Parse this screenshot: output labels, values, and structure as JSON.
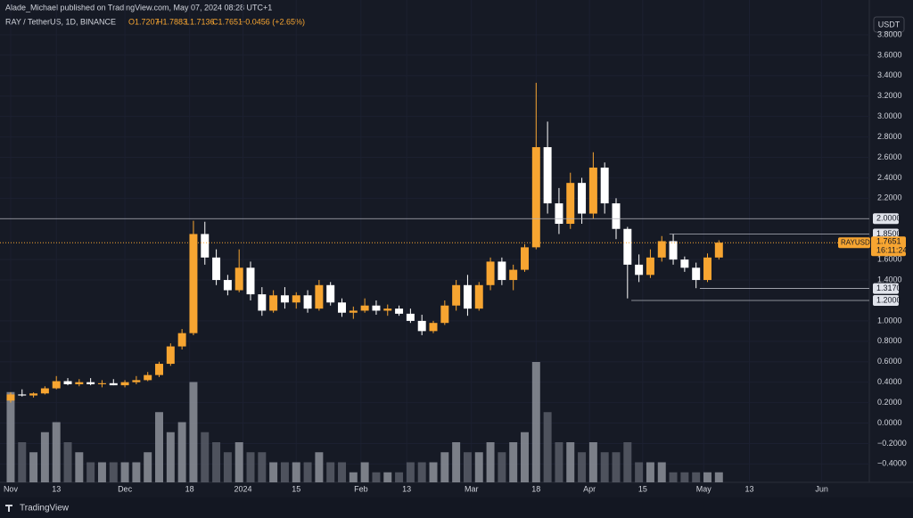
{
  "header": {
    "author_line": "Alade_Michael published on TradingView.com, May 07, 2024 08:28 UTC+1",
    "symbol": "RAY / TetherUS, 1D, BINANCE",
    "open": "O1.7207",
    "high": "H1.7883",
    "low": "L1.7136",
    "close": "C1.7651",
    "change": "+0.0456 (+2.65%)",
    "currency": "USDT",
    "brand": "TradingView"
  },
  "chart_data": {
    "type": "candlestick",
    "up_color": "#f7a531",
    "down_color": "#ffffff",
    "volume_up_color": "#9598a1",
    "volume_down_color": "#5d606b",
    "xlim": [
      -2.8,
      225.5
    ],
    "ylim": [
      -0.58,
      4.14
    ],
    "xticks": [
      {
        "value": 0,
        "label": "Nov"
      },
      {
        "value": 12,
        "label": "13"
      },
      {
        "value": 30,
        "label": "Dec"
      },
      {
        "value": 47,
        "label": "18"
      },
      {
        "value": 61,
        "label": "2024"
      },
      {
        "value": 75,
        "label": "15"
      },
      {
        "value": 92,
        "label": "Feb"
      },
      {
        "value": 104,
        "label": "13"
      },
      {
        "value": 121,
        "label": "Mar"
      },
      {
        "value": 138,
        "label": "18"
      },
      {
        "value": 152,
        "label": "Apr"
      },
      {
        "value": 166,
        "label": "15"
      },
      {
        "value": 182,
        "label": "May"
      },
      {
        "value": 194,
        "label": "13"
      },
      {
        "value": 213,
        "label": "Jun"
      }
    ],
    "yticks": [
      {
        "value": -0.4,
        "label": "−0.4000"
      },
      {
        "value": -0.2,
        "label": "−0.2000"
      },
      {
        "value": 0,
        "label": "0.0000"
      },
      {
        "value": 0.2,
        "label": "0.2000"
      },
      {
        "value": 0.4,
        "label": "0.4000"
      },
      {
        "value": 0.6,
        "label": "0.6000"
      },
      {
        "value": 0.8,
        "label": "0.8000"
      },
      {
        "value": 1.0,
        "label": "1.0000"
      },
      {
        "value": 1.4,
        "label": "1.4000"
      },
      {
        "value": 1.6,
        "label": "1.6000"
      },
      {
        "value": 2.2,
        "label": "2.2000"
      },
      {
        "value": 2.4,
        "label": "2.4000"
      },
      {
        "value": 2.6,
        "label": "2.6000"
      },
      {
        "value": 2.8,
        "label": "2.8000"
      },
      {
        "value": 3.0,
        "label": "3.0000"
      },
      {
        "value": 3.2,
        "label": "3.2000"
      },
      {
        "value": 3.4,
        "label": "3.4000"
      },
      {
        "value": 3.6,
        "label": "3.6000"
      },
      {
        "value": 3.8,
        "label": "3.8000"
      }
    ],
    "x": [
      0,
      3,
      6,
      9,
      12,
      15,
      18,
      21,
      24,
      27,
      30,
      33,
      36,
      39,
      42,
      45,
      48,
      51,
      54,
      57,
      60,
      63,
      66,
      69,
      72,
      75,
      78,
      81,
      84,
      87,
      90,
      93,
      96,
      99,
      102,
      105,
      108,
      111,
      114,
      117,
      120,
      123,
      126,
      129,
      132,
      135,
      138,
      141,
      144,
      147,
      150,
      153,
      156,
      159,
      162,
      165,
      168,
      171,
      174,
      177,
      180,
      183,
      186
    ],
    "open": [
      0.22,
      0.28,
      0.27,
      0.29,
      0.34,
      0.41,
      0.38,
      0.4,
      0.38,
      0.39,
      0.37,
      0.4,
      0.42,
      0.47,
      0.58,
      0.75,
      0.88,
      1.85,
      1.62,
      1.4,
      1.3,
      1.52,
      1.26,
      1.1,
      1.25,
      1.18,
      1.25,
      1.12,
      1.35,
      1.18,
      1.08,
      1.1,
      1.15,
      1.1,
      1.12,
      1.07,
      1.0,
      0.9,
      0.98,
      1.15,
      1.35,
      1.12,
      1.35,
      1.58,
      1.4,
      1.5,
      1.72,
      2.7,
      2.15,
      1.95,
      2.35,
      2.05,
      2.5,
      2.15,
      1.9,
      1.55,
      1.45,
      1.62,
      1.78,
      1.6,
      1.52,
      1.4,
      1.62
    ],
    "high": [
      0.3,
      0.33,
      0.3,
      0.36,
      0.46,
      0.44,
      0.43,
      0.44,
      0.42,
      0.43,
      0.42,
      0.46,
      0.5,
      0.6,
      0.78,
      0.92,
      1.98,
      1.97,
      1.7,
      1.45,
      1.7,
      1.58,
      1.33,
      1.3,
      1.33,
      1.28,
      1.3,
      1.4,
      1.38,
      1.22,
      1.14,
      1.22,
      1.2,
      1.16,
      1.15,
      1.12,
      1.06,
      1.0,
      1.2,
      1.4,
      1.45,
      1.38,
      1.62,
      1.62,
      1.55,
      1.75,
      3.33,
      2.95,
      2.3,
      2.45,
      2.4,
      2.65,
      2.55,
      2.2,
      1.92,
      1.65,
      1.7,
      1.83,
      1.85,
      1.63,
      1.57,
      1.66,
      1.7883
    ],
    "low": [
      0.2,
      0.26,
      0.25,
      0.28,
      0.33,
      0.37,
      0.36,
      0.37,
      0.35,
      0.37,
      0.35,
      0.38,
      0.41,
      0.45,
      0.56,
      0.72,
      0.86,
      1.55,
      1.35,
      1.25,
      1.28,
      1.2,
      1.05,
      1.08,
      1.12,
      1.12,
      1.08,
      1.1,
      1.15,
      1.04,
      1.02,
      1.08,
      1.06,
      1.05,
      1.05,
      0.98,
      0.86,
      0.88,
      0.96,
      1.1,
      1.05,
      1.1,
      1.3,
      1.35,
      1.3,
      1.48,
      1.7,
      2.05,
      1.85,
      1.9,
      1.95,
      2.0,
      2.05,
      1.8,
      1.22,
      1.38,
      1.42,
      1.58,
      1.55,
      1.48,
      1.32,
      1.38,
      1.6
    ],
    "close": [
      0.28,
      0.27,
      0.29,
      0.34,
      0.41,
      0.38,
      0.4,
      0.38,
      0.39,
      0.37,
      0.4,
      0.42,
      0.47,
      0.58,
      0.75,
      0.88,
      1.85,
      1.62,
      1.4,
      1.3,
      1.52,
      1.26,
      1.1,
      1.25,
      1.18,
      1.25,
      1.12,
      1.35,
      1.18,
      1.08,
      1.1,
      1.15,
      1.1,
      1.12,
      1.07,
      1.0,
      0.9,
      0.98,
      1.15,
      1.35,
      1.12,
      1.35,
      1.58,
      1.4,
      1.5,
      1.72,
      2.7,
      2.15,
      1.95,
      2.35,
      2.05,
      2.5,
      2.15,
      1.9,
      1.55,
      1.45,
      1.62,
      1.78,
      1.6,
      1.52,
      1.4,
      1.62,
      1.7651
    ],
    "volume": [
      9,
      4,
      3,
      5,
      6,
      4,
      3,
      2,
      2,
      2,
      2,
      2,
      3,
      7,
      5,
      6,
      10,
      5,
      4,
      3,
      4,
      3,
      3,
      2,
      2,
      2,
      2,
      3,
      2,
      2,
      1,
      2,
      1,
      1,
      1,
      2,
      2,
      2,
      3,
      4,
      3,
      3,
      4,
      3,
      4,
      5,
      12,
      7,
      4,
      4,
      3,
      4,
      3,
      3,
      4,
      2,
      2,
      2,
      1,
      1,
      1,
      1,
      1
    ],
    "levels": [
      {
        "value": 2.0,
        "label": "2.0000",
        "x": -2.8
      },
      {
        "value": 1.85,
        "label": "1.8500",
        "x": 173
      },
      {
        "value": 1.317,
        "label": "1.3170",
        "x": 181
      },
      {
        "value": 1.2,
        "label": "1.2000",
        "x": 163
      }
    ],
    "last_price": {
      "symbol": "RAYUSDT",
      "value": 1.7651,
      "countdown": "16:11:24"
    }
  }
}
